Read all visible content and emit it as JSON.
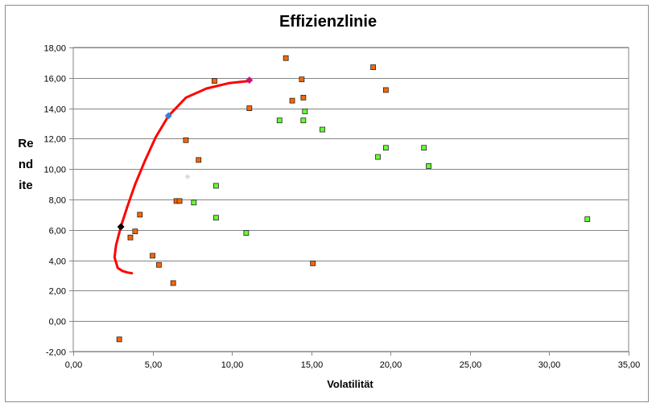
{
  "chart_data": {
    "type": "scatter",
    "title": "Effizienzlinie",
    "xlabel": "Volatilität",
    "ylabel": "Rendite",
    "xlim": [
      0,
      35
    ],
    "ylim": [
      -2,
      18
    ],
    "xticks": [
      "0,00",
      "5,00",
      "10,00",
      "15,00",
      "20,00",
      "25,00",
      "30,00",
      "35,00"
    ],
    "yticks": [
      "-2,00",
      "0,00",
      "2,00",
      "4,00",
      "6,00",
      "8,00",
      "10,00",
      "12,00",
      "14,00",
      "16,00",
      "18,00"
    ],
    "grid": "horizontal",
    "series": [
      {
        "color": "#ff6600",
        "marker": "square",
        "points": [
          [
            13.4,
            17.3
          ],
          [
            18.9,
            16.7
          ],
          [
            14.4,
            15.9
          ],
          [
            8.9,
            15.8
          ],
          [
            19.7,
            15.2
          ],
          [
            14.5,
            14.7
          ],
          [
            13.8,
            14.5
          ],
          [
            11.1,
            14.0
          ],
          [
            7.1,
            11.9
          ],
          [
            7.9,
            10.6
          ],
          [
            6.5,
            7.9
          ],
          [
            6.7,
            7.9
          ],
          [
            4.2,
            7.0
          ],
          [
            3.9,
            5.9
          ],
          [
            3.6,
            5.5
          ],
          [
            5.0,
            4.3
          ],
          [
            5.4,
            3.7
          ],
          [
            15.1,
            3.8
          ],
          [
            6.3,
            2.5
          ],
          [
            2.9,
            -1.2
          ]
        ]
      },
      {
        "color": "#66ff33",
        "marker": "square",
        "points": [
          [
            14.6,
            13.8
          ],
          [
            13.0,
            13.2
          ],
          [
            14.5,
            13.2
          ],
          [
            15.7,
            12.6
          ],
          [
            19.7,
            11.4
          ],
          [
            22.1,
            11.4
          ],
          [
            19.2,
            10.8
          ],
          [
            22.4,
            10.2
          ],
          [
            9.0,
            8.9
          ],
          [
            7.6,
            7.8
          ],
          [
            9.0,
            6.8
          ],
          [
            10.9,
            5.8
          ],
          [
            32.4,
            6.7
          ]
        ]
      },
      {
        "color": "#ff0000",
        "type": "line",
        "points": [
          [
            3.7,
            3.15
          ],
          [
            3.4,
            3.2
          ],
          [
            3.1,
            3.3
          ],
          [
            2.8,
            3.5
          ],
          [
            2.6,
            4.2
          ],
          [
            2.7,
            5.0
          ],
          [
            3.0,
            6.2
          ],
          [
            3.4,
            7.5
          ],
          [
            3.9,
            9.0
          ],
          [
            4.5,
            10.5
          ],
          [
            5.2,
            12.1
          ],
          [
            6.0,
            13.5
          ],
          [
            7.1,
            14.7
          ],
          [
            8.4,
            15.3
          ],
          [
            9.8,
            15.65
          ],
          [
            11.1,
            15.8
          ]
        ]
      },
      {
        "color": "#000000",
        "marker": "diamond",
        "points": [
          [
            3.0,
            6.2
          ]
        ]
      },
      {
        "color": "#3b7dd8",
        "marker": "diamond",
        "points": [
          [
            6.0,
            13.5
          ]
        ]
      },
      {
        "color": "#cc1177",
        "marker": "diamond",
        "points": [
          [
            11.1,
            15.85
          ]
        ]
      },
      {
        "color": "#d9d9d9",
        "marker": "star",
        "points": [
          [
            7.2,
            9.5
          ]
        ]
      }
    ]
  }
}
